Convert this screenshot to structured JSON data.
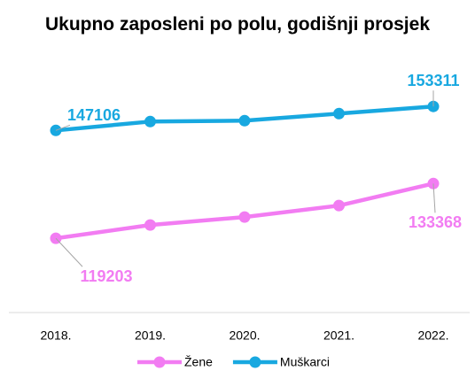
{
  "chart_data": {
    "type": "line",
    "title": "Ukupno zaposleni po polu, godišnji prosjek",
    "categories": [
      "2018.",
      "2019.",
      "2020.",
      "2021.",
      "2022."
    ],
    "series": [
      {
        "name": "Žene",
        "color": "#f27cf2",
        "values": [
          119203,
          122638,
          124700,
          127676,
          133368
        ]
      },
      {
        "name": "Muškarci",
        "color": "#18a8e0",
        "values": [
          147106,
          149396,
          149625,
          151457,
          153311
        ]
      }
    ],
    "ylim": [
      100000,
      160000
    ],
    "grid": false,
    "legend": "bottom"
  }
}
